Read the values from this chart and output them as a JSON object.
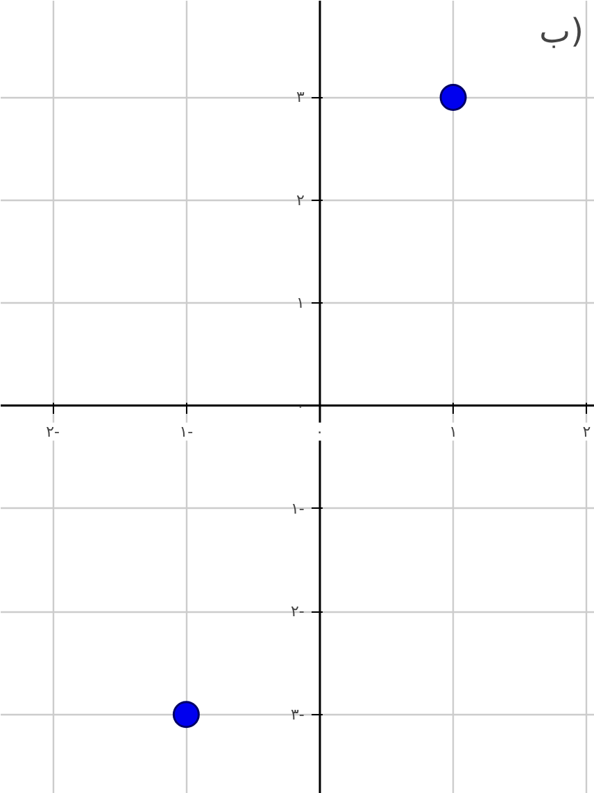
{
  "chart_data": {
    "type": "scatter",
    "title": "ب)",
    "x": [
      1,
      -1
    ],
    "values": [
      3,
      -3
    ],
    "color": "#0000ee",
    "marker": "circle",
    "grid": true,
    "xlim": [
      -2.39,
      2.06
    ],
    "ylim": [
      -3.77,
      3.94
    ],
    "xticks": [
      {
        "value": -2,
        "label": "٢-"
      },
      {
        "value": -1,
        "label": "١-"
      },
      {
        "value": 0,
        "label": "٠"
      },
      {
        "value": 1,
        "label": "١"
      },
      {
        "value": 2,
        "label": "٢"
      }
    ],
    "yticks": [
      {
        "value": -3,
        "label": "٣-"
      },
      {
        "value": -2,
        "label": "٢-"
      },
      {
        "value": -1,
        "label": "١-"
      },
      {
        "value": 0,
        "label": "٠"
      },
      {
        "value": 1,
        "label": "١"
      },
      {
        "value": 2,
        "label": "٢"
      },
      {
        "value": 3,
        "label": "٣"
      }
    ]
  }
}
